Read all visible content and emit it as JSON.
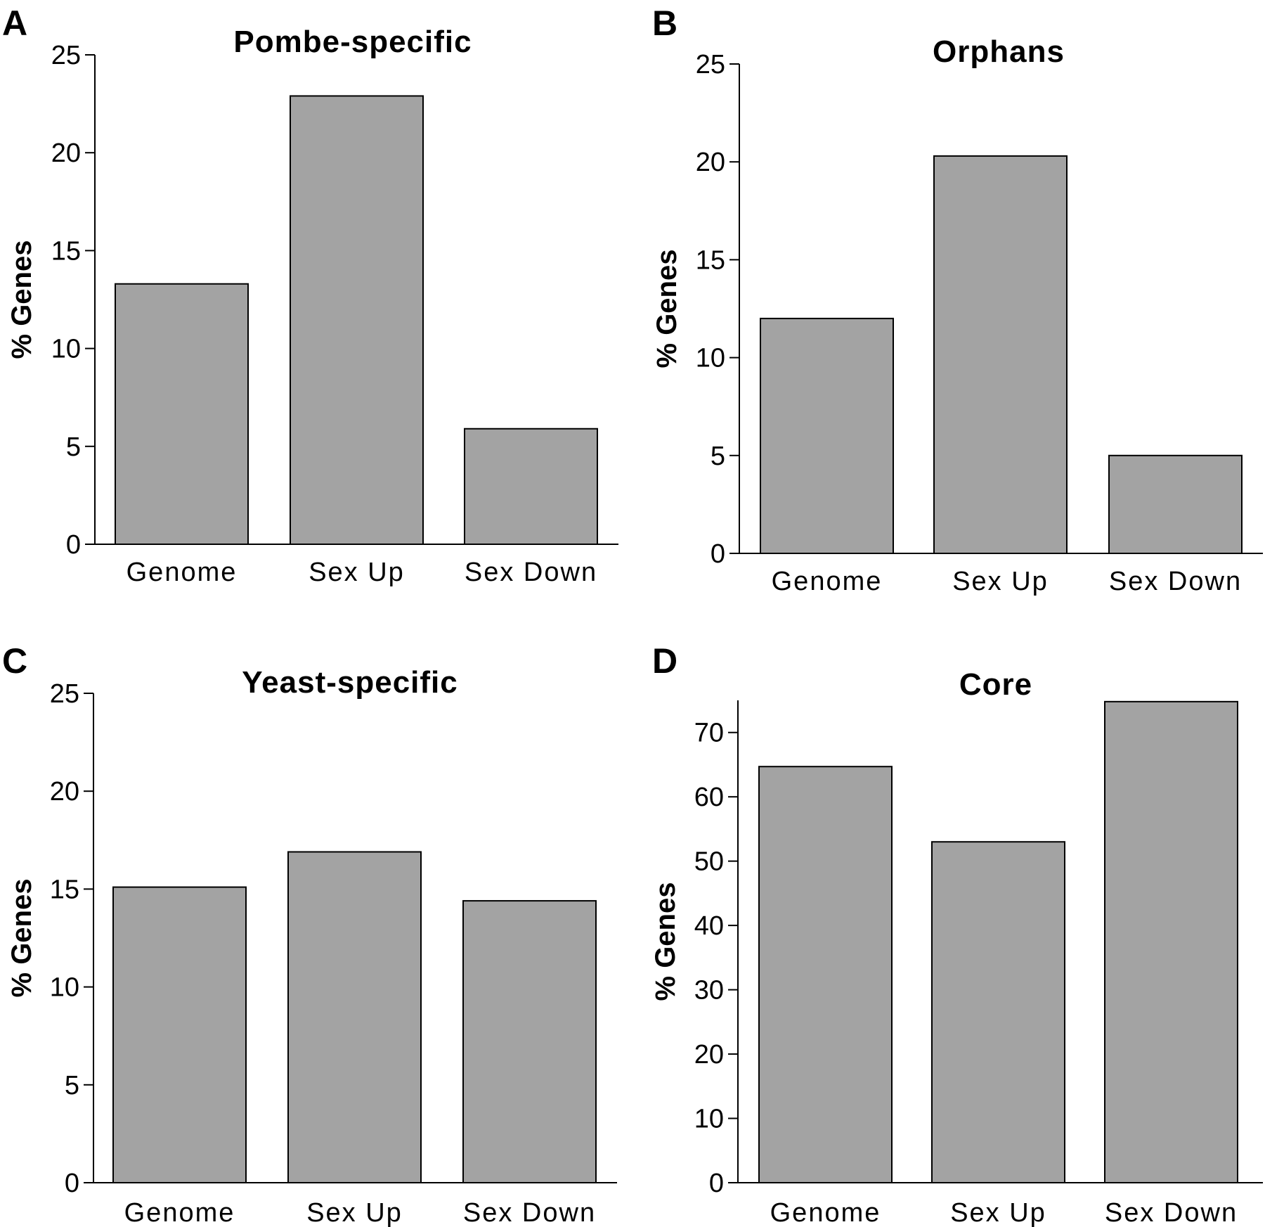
{
  "chart_data": [
    {
      "panel": "A",
      "type": "bar",
      "title": "Pombe-specific",
      "xlabel": "",
      "ylabel": "% Genes",
      "categories": [
        "Genome",
        "Sex Up",
        "Sex Down"
      ],
      "values": [
        13.3,
        22.9,
        5.9
      ],
      "ylim": [
        0,
        25
      ],
      "yticks": [
        0,
        5,
        10,
        15,
        20,
        25
      ],
      "bar_color": "#a3a3a3",
      "grid": false,
      "legend": "none"
    },
    {
      "panel": "B",
      "type": "bar",
      "title": "Orphans",
      "xlabel": "",
      "ylabel": "% Genes",
      "categories": [
        "Genome",
        "Sex Up",
        "Sex Down"
      ],
      "values": [
        12.0,
        20.3,
        5.0
      ],
      "ylim": [
        0,
        25
      ],
      "yticks": [
        0,
        5,
        10,
        15,
        20,
        25
      ],
      "bar_color": "#a3a3a3",
      "grid": false,
      "legend": "none"
    },
    {
      "panel": "C",
      "type": "bar",
      "title": "Yeast-specific",
      "xlabel": "",
      "ylabel": "% Genes",
      "categories": [
        "Genome",
        "Sex Up",
        "Sex Down"
      ],
      "values": [
        15.1,
        16.9,
        14.4
      ],
      "ylim": [
        0,
        25
      ],
      "yticks": [
        0,
        5,
        10,
        15,
        20,
        25
      ],
      "bar_color": "#a3a3a3",
      "grid": false,
      "legend": "none"
    },
    {
      "panel": "D",
      "type": "bar",
      "title": "Core",
      "xlabel": "",
      "ylabel": "% Genes",
      "categories": [
        "Genome",
        "Sex Up",
        "Sex Down"
      ],
      "values": [
        64.7,
        53.0,
        74.8
      ],
      "ylim": [
        0,
        75
      ],
      "yticks": [
        0,
        10,
        20,
        30,
        40,
        50,
        60,
        70
      ],
      "bar_color": "#a3a3a3",
      "grid": false,
      "legend": "none"
    }
  ]
}
